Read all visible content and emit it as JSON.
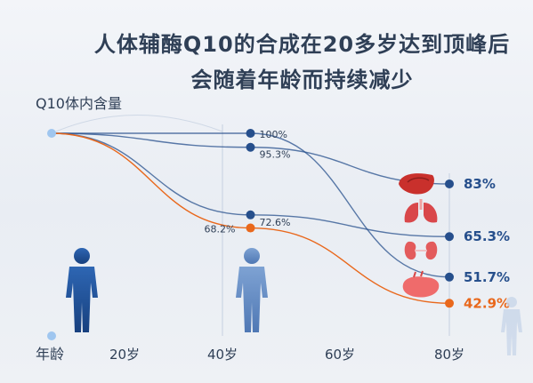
{
  "title_line1": "人体辅酶Q10的合成在20多岁达到顶峰后",
  "title_line2": "会随着年龄而持续减少",
  "chart_data": {
    "type": "line",
    "ylabel": "Q10体内含量",
    "xlabel": "年龄",
    "x_ticks": [
      20,
      40,
      60,
      80
    ],
    "x_tick_labels": [
      "20岁",
      "40岁",
      "60岁",
      "80岁"
    ],
    "xlim": [
      0,
      80
    ],
    "ylim": [
      0,
      100
    ],
    "series": [
      {
        "name": "",
        "organ": "liver-icon",
        "color": "#264f8c",
        "x": [
          0,
          40,
          80
        ],
        "y": [
          100,
          95.3,
          83
        ],
        "labels": [
          "",
          "95.3%",
          "83%"
        ]
      },
      {
        "name": "",
        "organ": "lung-icon",
        "color": "#264f8c",
        "x": [
          0,
          40,
          80
        ],
        "y": [
          100,
          72.6,
          65.3
        ],
        "labels": [
          "",
          "72.6%",
          "65.3%"
        ]
      },
      {
        "name": "",
        "organ": "kidney-icon",
        "color": "#264f8c",
        "x": [
          0,
          40,
          80
        ],
        "y": [
          100,
          100,
          51.7
        ],
        "labels": [
          "",
          "100%",
          "51.7%"
        ]
      },
      {
        "name": "",
        "organ": "heart-icon",
        "color": "#e9681c",
        "x": [
          0,
          40,
          80
        ],
        "y": [
          100,
          68.2,
          42.9
        ],
        "labels": [
          "",
          "68.2%",
          "42.9%"
        ]
      }
    ]
  },
  "colors": {
    "navy": "#264f8c",
    "orange": "#e9681c",
    "start_dot": "#9fc6ef",
    "guide": "#cfd8e6"
  }
}
